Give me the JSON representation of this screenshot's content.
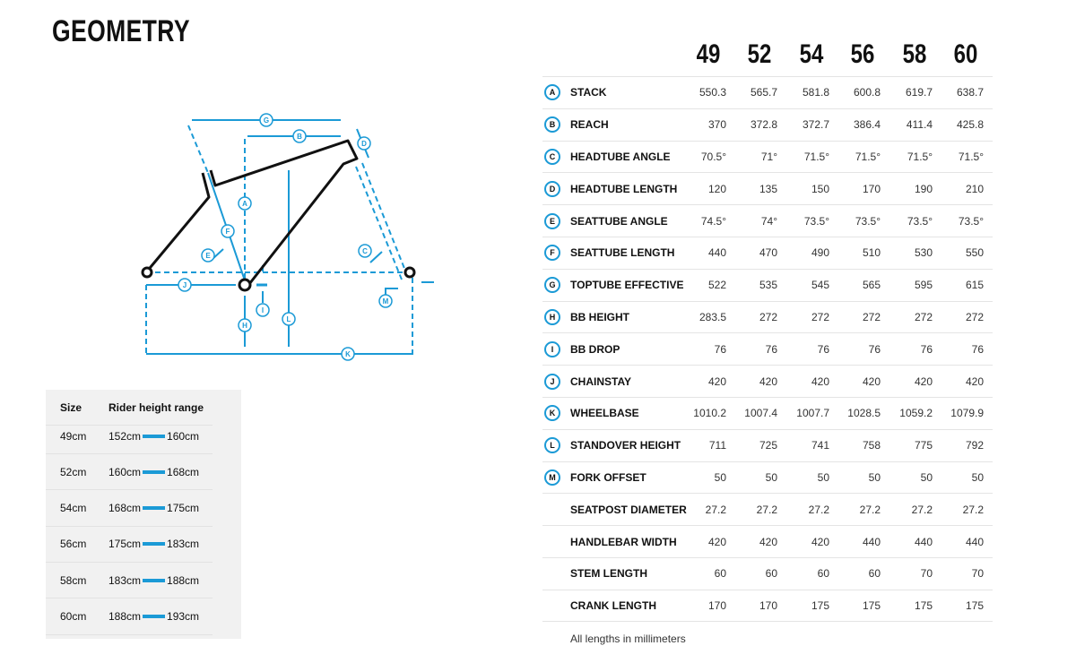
{
  "title": "GEOMETRY",
  "colors": {
    "accent": "#1b9ad6",
    "frame": "#111111"
  },
  "diagram_labels": [
    "A",
    "B",
    "C",
    "D",
    "E",
    "F",
    "G",
    "H",
    "I",
    "J",
    "K",
    "L",
    "M"
  ],
  "sizes_table": {
    "headers": [
      "Size",
      "Rider height range"
    ],
    "rows": [
      {
        "size": "49cm",
        "min": "152cm",
        "max": "160cm"
      },
      {
        "size": "52cm",
        "min": "160cm",
        "max": "168cm"
      },
      {
        "size": "54cm",
        "min": "168cm",
        "max": "175cm"
      },
      {
        "size": "56cm",
        "min": "175cm",
        "max": "183cm"
      },
      {
        "size": "58cm",
        "min": "183cm",
        "max": "188cm"
      },
      {
        "size": "60cm",
        "min": "188cm",
        "max": "193cm"
      }
    ]
  },
  "geometry": {
    "sizes": [
      "49",
      "52",
      "54",
      "56",
      "58",
      "60"
    ],
    "rows": [
      {
        "letter": "A",
        "label": "STACK",
        "values": [
          "550.3",
          "565.7",
          "581.8",
          "600.8",
          "619.7",
          "638.7"
        ]
      },
      {
        "letter": "B",
        "label": "REACH",
        "values": [
          "370",
          "372.8",
          "372.7",
          "386.4",
          "411.4",
          "425.8"
        ]
      },
      {
        "letter": "C",
        "label": "HEADTUBE ANGLE",
        "values": [
          "70.5°",
          "71°",
          "71.5°",
          "71.5°",
          "71.5°",
          "71.5°"
        ]
      },
      {
        "letter": "D",
        "label": "HEADTUBE LENGTH",
        "values": [
          "120",
          "135",
          "150",
          "170",
          "190",
          "210"
        ]
      },
      {
        "letter": "E",
        "label": "SEATTUBE ANGLE",
        "values": [
          "74.5°",
          "74°",
          "73.5°",
          "73.5°",
          "73.5°",
          "73.5°"
        ]
      },
      {
        "letter": "F",
        "label": "SEATTUBE LENGTH",
        "values": [
          "440",
          "470",
          "490",
          "510",
          "530",
          "550"
        ]
      },
      {
        "letter": "G",
        "label": "TOPTUBE EFFECTIVE",
        "values": [
          "522",
          "535",
          "545",
          "565",
          "595",
          "615"
        ]
      },
      {
        "letter": "H",
        "label": "BB HEIGHT",
        "values": [
          "283.5",
          "272",
          "272",
          "272",
          "272",
          "272"
        ]
      },
      {
        "letter": "I",
        "label": "BB DROP",
        "values": [
          "76",
          "76",
          "76",
          "76",
          "76",
          "76"
        ]
      },
      {
        "letter": "J",
        "label": "CHAINSTAY",
        "values": [
          "420",
          "420",
          "420",
          "420",
          "420",
          "420"
        ]
      },
      {
        "letter": "K",
        "label": "WHEELBASE",
        "values": [
          "1010.2",
          "1007.4",
          "1007.7",
          "1028.5",
          "1059.2",
          "1079.9"
        ]
      },
      {
        "letter": "L",
        "label": "STANDOVER HEIGHT",
        "values": [
          "711",
          "725",
          "741",
          "758",
          "775",
          "792"
        ]
      },
      {
        "letter": "M",
        "label": "FORK OFFSET",
        "values": [
          "50",
          "50",
          "50",
          "50",
          "50",
          "50"
        ]
      },
      {
        "letter": "",
        "label": "SEATPOST DIAMETER",
        "values": [
          "27.2",
          "27.2",
          "27.2",
          "27.2",
          "27.2",
          "27.2"
        ]
      },
      {
        "letter": "",
        "label": "HANDLEBAR WIDTH",
        "values": [
          "420",
          "420",
          "420",
          "440",
          "440",
          "440"
        ]
      },
      {
        "letter": "",
        "label": "STEM LENGTH",
        "values": [
          "60",
          "60",
          "60",
          "60",
          "70",
          "70"
        ]
      },
      {
        "letter": "",
        "label": "CRANK LENGTH",
        "values": [
          "170",
          "170",
          "175",
          "175",
          "175",
          "175"
        ]
      }
    ]
  },
  "note": "All lengths in millimeters"
}
